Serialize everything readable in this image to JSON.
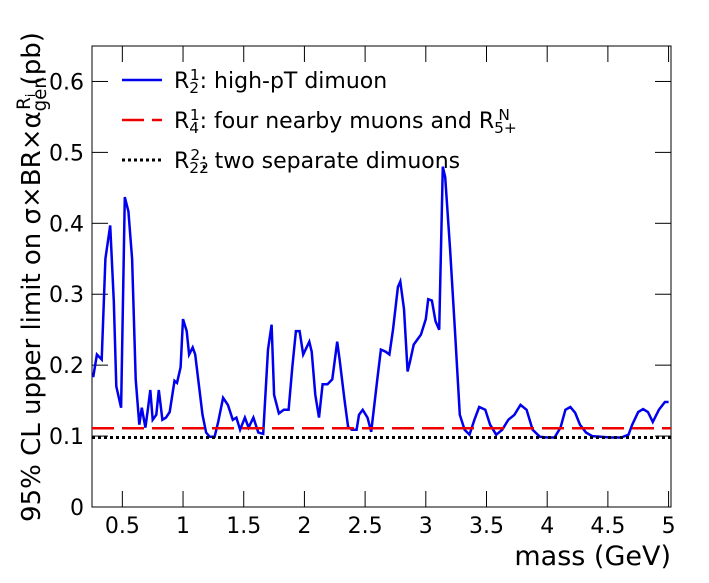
{
  "chart_data": {
    "type": "line",
    "x_label": "mass (GeV)",
    "y_label": [
      {
        "text": "95% CL upper limit on σ×BR×α"
      },
      {
        "sub": "gen"
      },
      {
        "sup": "R"
      },
      {
        "supsub": "i"
      },
      {
        "text": " (pb)"
      }
    ],
    "xlim": [
      0.25,
      5.02
    ],
    "ylim": [
      0,
      0.65
    ],
    "xticks": [
      0.5,
      1,
      1.5,
      2,
      2.5,
      3,
      3.5,
      4,
      4.5,
      5
    ],
    "yticks": [
      0,
      0.1,
      0.2,
      0.3,
      0.4,
      0.5,
      0.6
    ],
    "legend": "top-left",
    "series": [
      {
        "name": [
          {
            "text": "R"
          },
          {
            "sub": "2"
          },
          {
            "sup": "1"
          },
          {
            "text": ": high-pT dimuon"
          }
        ],
        "color": "#0000ee",
        "dash": "solid",
        "x": [
          0.26,
          0.29,
          0.33,
          0.36,
          0.4,
          0.43,
          0.45,
          0.49,
          0.52,
          0.55,
          0.58,
          0.61,
          0.64,
          0.66,
          0.69,
          0.71,
          0.73,
          0.75,
          0.78,
          0.8,
          0.83,
          0.86,
          0.89,
          0.93,
          0.95,
          0.98,
          1.0,
          1.03,
          1.05,
          1.08,
          1.1,
          1.13,
          1.16,
          1.19,
          1.22,
          1.26,
          1.29,
          1.33,
          1.37,
          1.41,
          1.44,
          1.47,
          1.51,
          1.54,
          1.58,
          1.62,
          1.66,
          1.7,
          1.73,
          1.75,
          1.79,
          1.83,
          1.87,
          1.9,
          1.93,
          1.96,
          1.99,
          2.04,
          2.06,
          2.09,
          2.12,
          2.15,
          2.19,
          2.23,
          2.27,
          2.29,
          2.33,
          2.36,
          2.39,
          2.43,
          2.45,
          2.48,
          2.52,
          2.55,
          2.6,
          2.63,
          2.67,
          2.7,
          2.73,
          2.77,
          2.79,
          2.82,
          2.85,
          2.87,
          2.9,
          2.93,
          2.96,
          3.0,
          3.02,
          3.05,
          3.08,
          3.11,
          3.14,
          3.16,
          3.2,
          3.24,
          3.28,
          3.32,
          3.36,
          3.4,
          3.44,
          3.49,
          3.53,
          3.58,
          3.63,
          3.68,
          3.73,
          3.78,
          3.83,
          3.88,
          3.94,
          4.0,
          4.06,
          4.11,
          4.15,
          4.19,
          4.23,
          4.27,
          4.32,
          4.37,
          4.44,
          4.52,
          4.61,
          4.67,
          4.7,
          4.75,
          4.79,
          4.83,
          4.87,
          4.92,
          4.97,
          5.0
        ],
        "values": [
          0.183,
          0.215,
          0.208,
          0.35,
          0.397,
          0.29,
          0.17,
          0.14,
          0.437,
          0.417,
          0.35,
          0.18,
          0.116,
          0.14,
          0.112,
          0.137,
          0.165,
          0.123,
          0.13,
          0.165,
          0.123,
          0.126,
          0.134,
          0.178,
          0.175,
          0.197,
          0.265,
          0.248,
          0.215,
          0.225,
          0.215,
          0.173,
          0.13,
          0.105,
          0.099,
          0.099,
          0.12,
          0.154,
          0.144,
          0.123,
          0.126,
          0.109,
          0.126,
          0.112,
          0.126,
          0.105,
          0.103,
          0.222,
          0.257,
          0.158,
          0.132,
          0.137,
          0.137,
          0.197,
          0.248,
          0.248,
          0.215,
          0.233,
          0.219,
          0.158,
          0.126,
          0.173,
          0.173,
          0.18,
          0.233,
          0.208,
          0.151,
          0.113,
          0.109,
          0.109,
          0.13,
          0.137,
          0.126,
          0.106,
          0.18,
          0.222,
          0.219,
          0.215,
          0.25,
          0.31,
          0.318,
          0.279,
          0.191,
          0.205,
          0.229,
          0.236,
          0.243,
          0.265,
          0.293,
          0.291,
          0.262,
          0.25,
          0.48,
          0.465,
          0.363,
          0.25,
          0.13,
          0.109,
          0.102,
          0.123,
          0.141,
          0.137,
          0.116,
          0.102,
          0.109,
          0.123,
          0.13,
          0.144,
          0.137,
          0.109,
          0.099,
          0.098,
          0.098,
          0.112,
          0.137,
          0.141,
          0.133,
          0.116,
          0.105,
          0.1,
          0.099,
          0.098,
          0.098,
          0.102,
          0.116,
          0.134,
          0.138,
          0.134,
          0.12,
          0.137,
          0.148,
          0.148
        ]
      },
      {
        "name": [
          {
            "text": "R"
          },
          {
            "sub": "4"
          },
          {
            "sup": "1"
          },
          {
            "text": ": four nearby muons and R"
          },
          {
            "sub": "5+"
          },
          {
            "sup": "N"
          }
        ],
        "color": "#ee0000",
        "dash": "dashed",
        "x": [
          0.25,
          5.02
        ],
        "values": [
          0.111,
          0.111
        ]
      },
      {
        "name": [
          {
            "text": "R"
          },
          {
            "sub": "22"
          },
          {
            "sup": "2"
          },
          {
            "text": ": two separate dimuons"
          }
        ],
        "color": "#000000",
        "dash": "dotted",
        "x": [
          0.25,
          5.02
        ],
        "values": [
          0.098,
          0.098
        ]
      }
    ]
  }
}
